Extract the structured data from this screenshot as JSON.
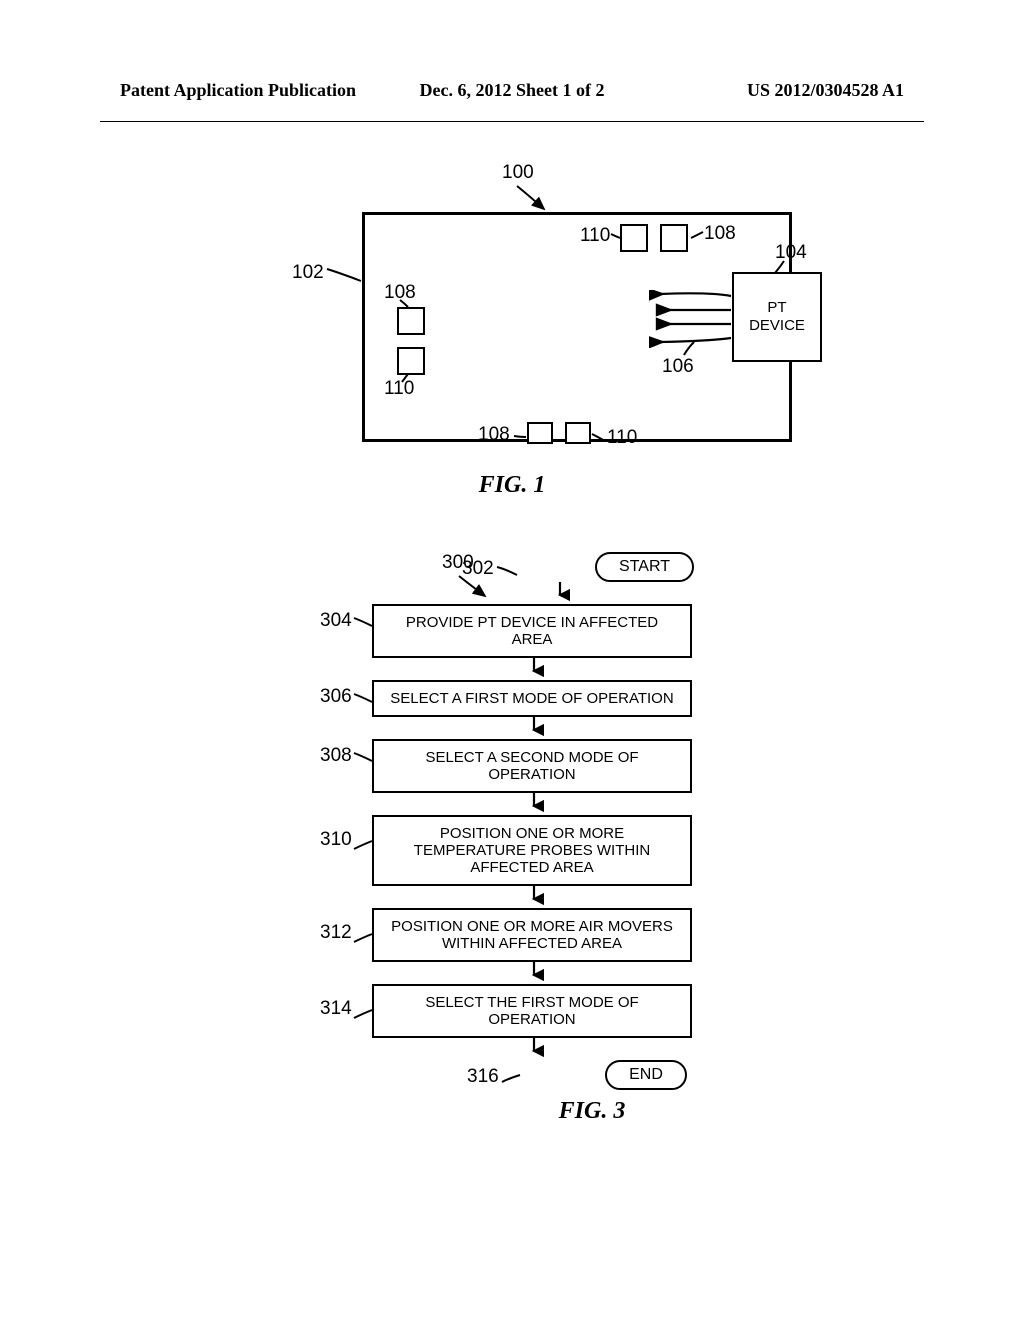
{
  "header": {
    "left": "Patent Application Publication",
    "center": "Dec. 6, 2012  Sheet 1 of 2",
    "right": "US 2012/0304528 A1"
  },
  "fig1": {
    "caption": "FIG. 1",
    "pt_label": "PT DEVICE",
    "ref_100": "100",
    "ref_102": "102",
    "ref_104": "104",
    "ref_106": "106",
    "ref_108_top": "108",
    "ref_108_left": "108",
    "ref_108_bottom": "108",
    "ref_110_top": "110",
    "ref_110_left": "110",
    "ref_110_bottom": "110",
    "colors": {
      "line": "#000000",
      "bg": "#ffffff"
    }
  },
  "fig3": {
    "caption": "FIG. 3",
    "ref_300": "300",
    "start": {
      "num": "302",
      "text": "START"
    },
    "end": {
      "num": "316",
      "text": "END"
    },
    "steps": [
      {
        "num": "304",
        "text": "PROVIDE PT DEVICE IN AFFECTED AREA"
      },
      {
        "num": "306",
        "text": "SELECT A FIRST MODE OF OPERATION"
      },
      {
        "num": "308",
        "text": "SELECT A SECOND MODE OF OPERATION"
      },
      {
        "num": "310",
        "text": "POSITION ONE OR MORE TEMPERATURE PROBES WITHIN AFFECTED AREA"
      },
      {
        "num": "312",
        "text": "POSITION ONE OR MORE AIR MOVERS WITHIN AFFECTED AREA"
      },
      {
        "num": "314",
        "text": "SELECT THE FIRST MODE OF OPERATION"
      }
    ],
    "colors": {
      "line": "#000000",
      "bg": "#ffffff"
    }
  }
}
